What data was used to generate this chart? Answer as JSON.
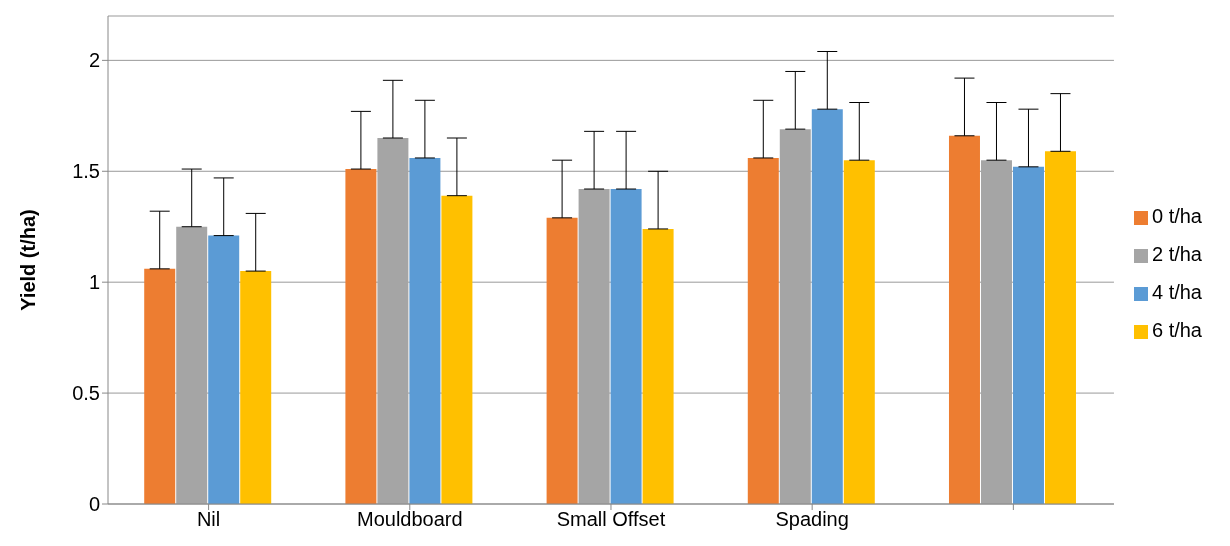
{
  "chart_data": {
    "type": "bar",
    "ylabel": "Yield (t/ha)",
    "categories": [
      "Nil",
      "Mouldboard",
      "Small Offset",
      "Spading",
      null
    ],
    "series": [
      {
        "name": "0 t/ha",
        "color": "#ed7d31",
        "values": [
          1.06,
          1.51,
          1.29,
          1.56,
          1.66
        ],
        "errors": [
          [
            1.06,
            1.32
          ],
          [
            1.51,
            1.77
          ],
          [
            1.29,
            1.55
          ],
          [
            1.56,
            1.82
          ],
          [
            1.66,
            1.92
          ]
        ]
      },
      {
        "name": "2 t/ha",
        "color": "#a5a5a5",
        "values": [
          1.25,
          1.65,
          1.42,
          1.69,
          1.55
        ],
        "errors": [
          [
            1.25,
            1.51
          ],
          [
            1.65,
            1.91
          ],
          [
            1.42,
            1.68
          ],
          [
            1.69,
            1.95
          ],
          [
            1.55,
            1.81
          ]
        ]
      },
      {
        "name": "4 t/ha",
        "color": "#5b9bd5",
        "values": [
          1.21,
          1.56,
          1.42,
          1.78,
          1.52
        ],
        "errors": [
          [
            1.21,
            1.47
          ],
          [
            1.56,
            1.82
          ],
          [
            1.42,
            1.68
          ],
          [
            1.78,
            2.04
          ],
          [
            1.52,
            1.78
          ]
        ]
      },
      {
        "name": "6 t/ha",
        "color": "#ffc000",
        "values": [
          1.05,
          1.39,
          1.24,
          1.55,
          1.59
        ],
        "errors": [
          [
            1.05,
            1.31
          ],
          [
            1.39,
            1.65
          ],
          [
            1.24,
            1.5
          ],
          [
            1.55,
            1.81
          ],
          [
            1.59,
            1.85
          ]
        ]
      }
    ],
    "ylim": [
      0,
      2.2
    ],
    "yticks": [
      0,
      0.5,
      1,
      1.5,
      2
    ],
    "grid": "y",
    "legend": "right"
  }
}
